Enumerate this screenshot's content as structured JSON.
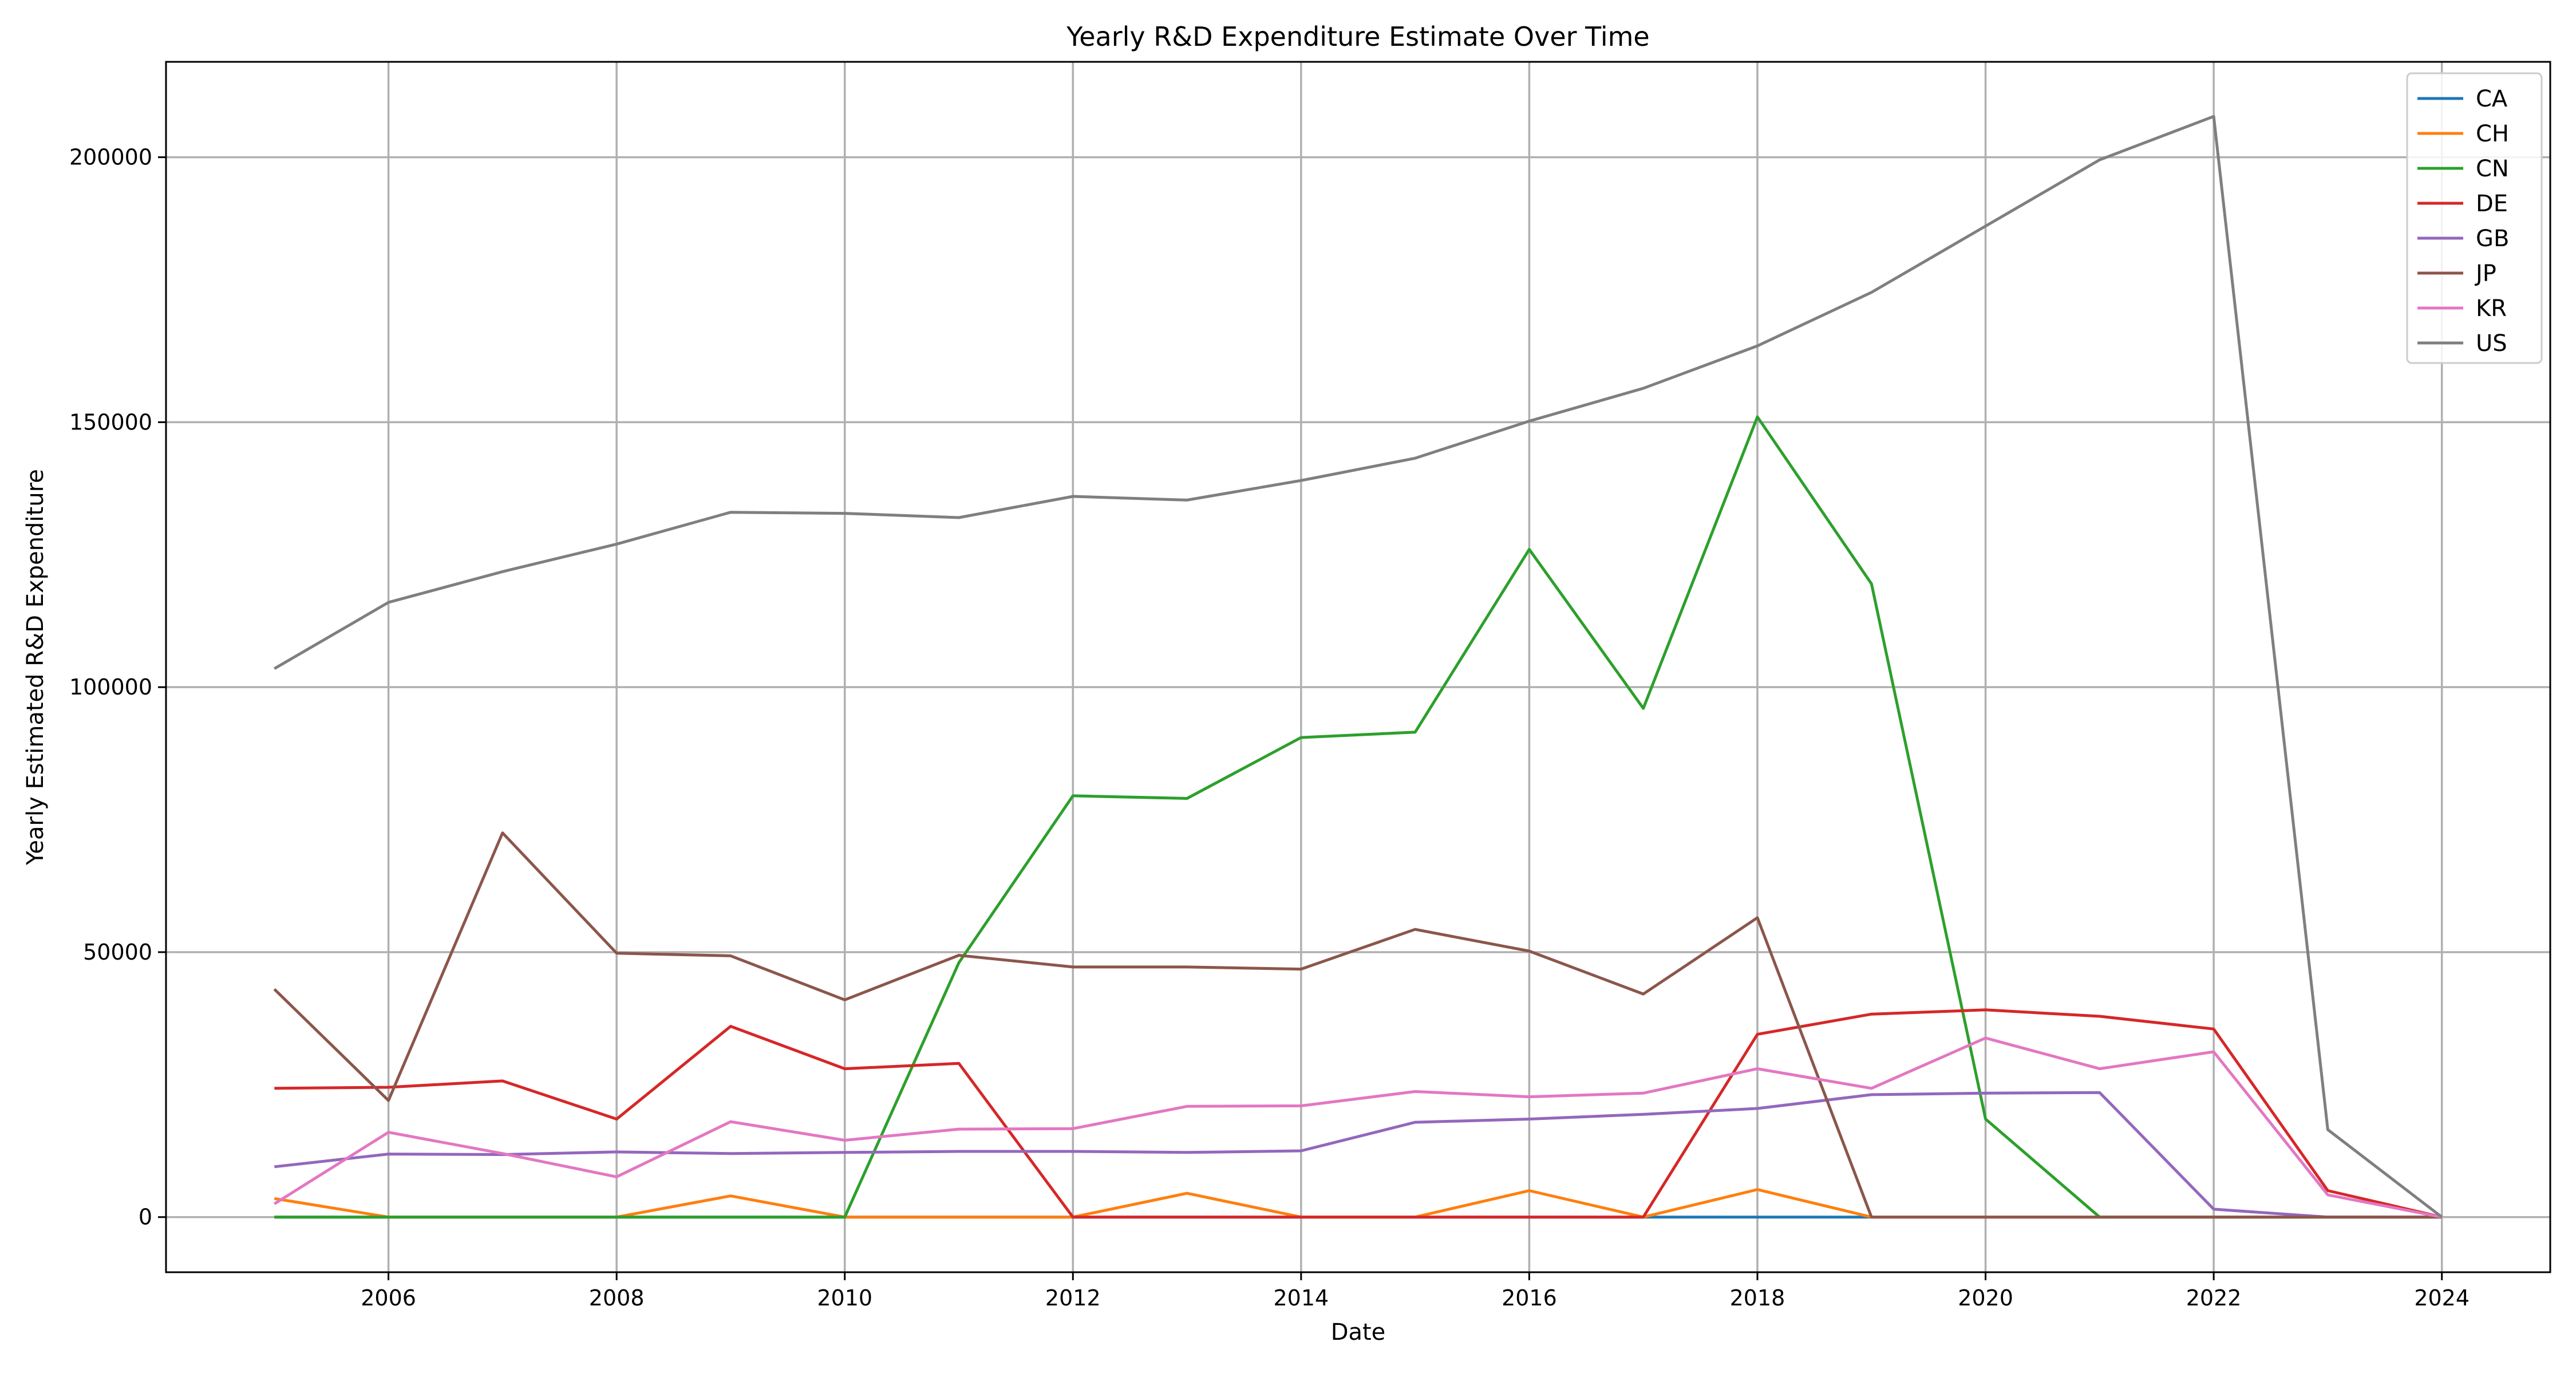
{
  "chart_data": {
    "type": "line",
    "title": "Yearly R&D Expenditure Estimate Over Time",
    "xlabel": "Date",
    "ylabel": "Yearly Estimated R&D Expenditure",
    "xlim": [
      2004.05,
      2024.95
    ],
    "ylim": [
      -10400,
      218000
    ],
    "x_ticks": [
      2006,
      2008,
      2010,
      2012,
      2014,
      2016,
      2018,
      2020,
      2022,
      2024
    ],
    "y_ticks": [
      0,
      50000,
      100000,
      150000,
      200000
    ],
    "grid": true,
    "legend_position": "top-right",
    "x": [
      2005,
      2006,
      2007,
      2008,
      2009,
      2010,
      2011,
      2012,
      2013,
      2014,
      2015,
      2016,
      2017,
      2018,
      2019,
      2020,
      2021,
      2022,
      2023,
      2024
    ],
    "series": [
      {
        "name": "CA",
        "color": "#1f77b4",
        "values": [
          0,
          0,
          0,
          0,
          0,
          0,
          0,
          0,
          0,
          0,
          0,
          0,
          0,
          0,
          0,
          null,
          null,
          null,
          null,
          null
        ]
      },
      {
        "name": "CH",
        "color": "#ff7f0e",
        "values": [
          3500,
          0,
          0,
          0,
          4000,
          0,
          0,
          0,
          4500,
          0,
          0,
          5000,
          0,
          5200,
          0,
          0,
          0,
          0,
          0,
          0
        ]
      },
      {
        "name": "CN",
        "color": "#2ca02c",
        "values": [
          0,
          0,
          0,
          0,
          0,
          0,
          48000,
          79500,
          79000,
          90500,
          91500,
          126000,
          96000,
          151000,
          119500,
          18500,
          0,
          0,
          0,
          0
        ]
      },
      {
        "name": "DE",
        "color": "#d62728",
        "values": [
          24300,
          24500,
          25700,
          18500,
          36000,
          28000,
          29000,
          0,
          0,
          0,
          0,
          0,
          0,
          34500,
          38300,
          39100,
          37900,
          35500,
          5000,
          0
        ]
      },
      {
        "name": "GB",
        "color": "#9467bd",
        "values": [
          9500,
          11900,
          11800,
          12300,
          12000,
          12200,
          12400,
          12400,
          12200,
          12500,
          17900,
          18500,
          19400,
          20500,
          23100,
          23400,
          23500,
          1500,
          0,
          0
        ]
      },
      {
        "name": "JP",
        "color": "#8c564b",
        "values": [
          43000,
          22000,
          72500,
          49800,
          49300,
          41000,
          49400,
          47200,
          47200,
          46800,
          54300,
          50200,
          42100,
          56500,
          0,
          0,
          0,
          0,
          0,
          0
        ]
      },
      {
        "name": "KR",
        "color": "#e377c2",
        "values": [
          2500,
          16000,
          12000,
          7600,
          18000,
          14500,
          16600,
          16700,
          20900,
          21000,
          23700,
          22700,
          23400,
          28000,
          24300,
          33800,
          28000,
          31200,
          4200,
          0
        ]
      },
      {
        "name": "US",
        "color": "#7f7f7f",
        "values": [
          103500,
          116000,
          121800,
          127000,
          133000,
          132800,
          132000,
          136000,
          135300,
          139000,
          143200,
          150200,
          156400,
          164400,
          174500,
          187000,
          199500,
          207700,
          16500,
          0
        ]
      }
    ]
  }
}
